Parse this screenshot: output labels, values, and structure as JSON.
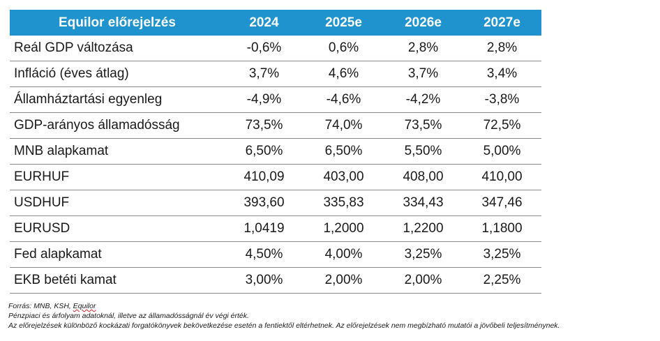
{
  "chart_data": {
    "type": "table",
    "header": {
      "title": "Equilor előrejelzés",
      "years": [
        "2024",
        "2025e",
        "2026e",
        "2027e"
      ]
    },
    "rows": [
      {
        "label": "Reál GDP változása",
        "values": [
          "-0,6%",
          "0,6%",
          "2,8%",
          "2,8%"
        ]
      },
      {
        "label": "Infláció (éves átlag)",
        "values": [
          "3,7%",
          "4,6%",
          "3,7%",
          "3,4%"
        ]
      },
      {
        "label": "Államháztartási egyenleg",
        "values": [
          "-4,9%",
          "-4,6%",
          "-4,2%",
          "-3,8%"
        ]
      },
      {
        "label": "GDP-arányos államadósság",
        "values": [
          "73,5%",
          "74,0%",
          "73,5%",
          "72,5%"
        ]
      },
      {
        "label": "MNB alapkamat",
        "values": [
          "6,50%",
          "6,50%",
          "5,50%",
          "5,00%"
        ]
      },
      {
        "label": "EURHUF",
        "values": [
          "410,09",
          "403,00",
          "408,00",
          "410,00"
        ]
      },
      {
        "label": "USDHUF",
        "values": [
          "393,60",
          "335,83",
          "334,43",
          "347,46"
        ]
      },
      {
        "label": "EURUSD",
        "values": [
          "1,0419",
          "1,2000",
          "1,2200",
          "1,1800"
        ]
      },
      {
        "label": "Fed alapkamat",
        "values": [
          "4,50%",
          "4,00%",
          "3,25%",
          "3,25%"
        ]
      },
      {
        "label": "EKB betéti kamat",
        "values": [
          "3,00%",
          "2,00%",
          "2,00%",
          "2,25%"
        ]
      }
    ]
  },
  "notes": {
    "source_prefix": "Forrás: MNB, KSH, ",
    "source_name": "Equilor",
    "line2": "Pénzpiaci és árfolyam adatoknál, illetve az államadósságnál év végi érték.",
    "line3": "Az előrejelzések különböző kockázati forgatókönyvek bekövetkezése esetén a fentiektől eltérhetnek. Az előrejelzések nem megbízható mutatói a jövőbeli teljesítménynek."
  },
  "colors": {
    "header_bg": "#1f93cd",
    "header_text": "#ffffff",
    "row_divider": "#8a8a8a"
  }
}
